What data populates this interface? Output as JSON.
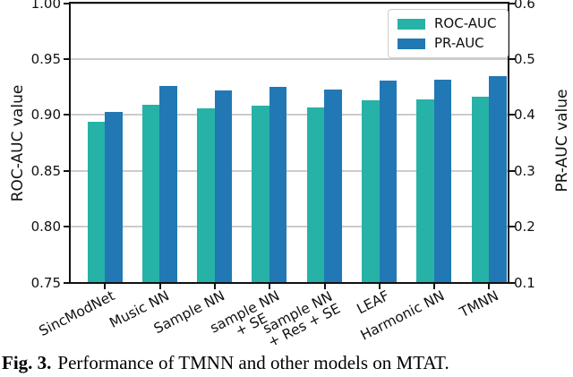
{
  "chart_data": {
    "type": "bar",
    "title": "",
    "categories": [
      "SincModNet",
      "Music NN",
      "Sample NN",
      "sample NN\n+ SE",
      "sample NN\n+ Res + SE",
      "LEAF",
      "Harmonic NN",
      "TMNN"
    ],
    "series": [
      {
        "name": "ROC-AUC",
        "axis": "left",
        "color": "#26b2a7",
        "values": [
          0.894,
          0.909,
          0.906,
          0.908,
          0.907,
          0.913,
          0.914,
          0.916
        ]
      },
      {
        "name": "PR-AUC",
        "axis": "right",
        "color": "#2278b4",
        "values": [
          0.405,
          0.452,
          0.443,
          0.45,
          0.446,
          0.461,
          0.463,
          0.47
        ]
      }
    ],
    "left_axis": {
      "label": "ROC-AUC value",
      "range": [
        0.75,
        1.0
      ],
      "tick_labels": [
        "1.00",
        "0.95",
        "0.90",
        "0.85",
        "0.80",
        "0.75"
      ],
      "tick_values": [
        1.0,
        0.95,
        0.9,
        0.85,
        0.8,
        0.75
      ]
    },
    "right_axis": {
      "label": "PR-AUC value",
      "range": [
        0.1,
        0.6
      ],
      "tick_labels": [
        "0.6",
        "0.5",
        "0.4",
        "0.3",
        "0.2",
        "0.1"
      ],
      "tick_values": [
        0.6,
        0.5,
        0.4,
        0.3,
        0.2,
        0.1
      ]
    },
    "grid": true,
    "legend_position": "upper right",
    "grid_color": "#cccccc",
    "spine_color": "#111111"
  },
  "caption": {
    "prefix": "Fig. 3.",
    "rest": "Performance of TMNN and other models on MTAT."
  }
}
